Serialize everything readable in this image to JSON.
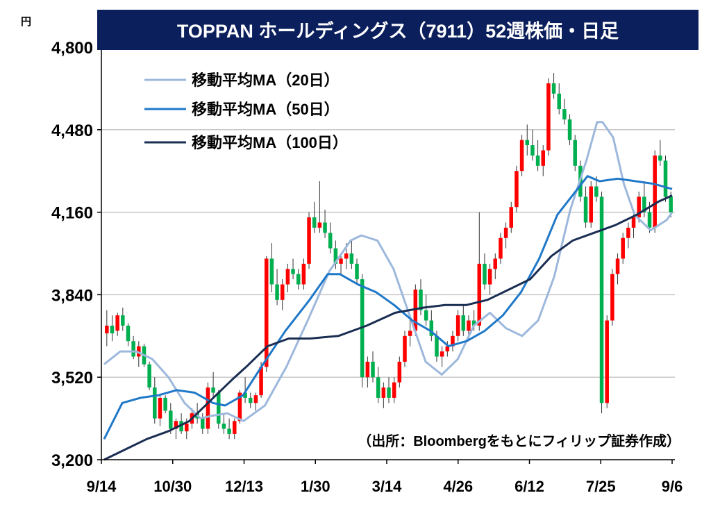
{
  "chart_data": {
    "type": "candlestick",
    "title": "TOPPAN ホールディングス（7911）52週株価・日足",
    "unit_label": "円",
    "source": "（出所：Bloombergをもとにフィリップ証券作成）",
    "ylim": [
      3200,
      4800
    ],
    "yticks": [
      4800,
      4480,
      4160,
      3840,
      3520,
      3200
    ],
    "ytick_labels": [
      "4,800",
      "4,480",
      "4,160",
      "3,840",
      "3,520",
      "3,200"
    ],
    "xtick_labels": [
      "9/14",
      "10/30",
      "12/13",
      "1/30",
      "3/14",
      "4/26",
      "6/12",
      "7/25",
      "9/6"
    ],
    "grid": true,
    "legend_position": "top-left",
    "colors": {
      "up": "#ff0000",
      "down": "#00b050",
      "ma20": "#9db8dc",
      "ma50": "#1f78c8",
      "ma100": "#1a2d52",
      "title_bg": "#0a1f5c",
      "title_text": "#ffffff"
    },
    "legend": [
      "移動平均MA（20日）",
      "移動平均MA（50日）",
      "移動平均MA（100日）"
    ],
    "series": [
      {
        "name": "移動平均MA（20日）",
        "points": [
          [
            0,
            3570
          ],
          [
            3,
            3620
          ],
          [
            6,
            3620
          ],
          [
            9,
            3590
          ],
          [
            12,
            3520
          ],
          [
            15,
            3420
          ],
          [
            18,
            3360
          ],
          [
            20,
            3370
          ],
          [
            23,
            3380
          ],
          [
            26,
            3350
          ],
          [
            30,
            3410
          ],
          [
            34,
            3560
          ],
          [
            38,
            3740
          ],
          [
            42,
            3930
          ],
          [
            46,
            4050
          ],
          [
            48,
            4070
          ],
          [
            51,
            4050
          ],
          [
            54,
            3940
          ],
          [
            57,
            3760
          ],
          [
            60,
            3580
          ],
          [
            63,
            3530
          ],
          [
            66,
            3590
          ],
          [
            69,
            3720
          ],
          [
            72,
            3770
          ],
          [
            75,
            3710
          ],
          [
            78,
            3680
          ],
          [
            81,
            3740
          ],
          [
            84,
            3910
          ],
          [
            87,
            4170
          ],
          [
            90,
            4360
          ],
          [
            92,
            4510
          ],
          [
            93,
            4510
          ],
          [
            95,
            4450
          ],
          [
            97,
            4270
          ],
          [
            99,
            4150
          ],
          [
            102,
            4090
          ],
          [
            105,
            4130
          ],
          [
            106,
            4160
          ]
        ]
      },
      {
        "name": "移動平均MA（50日）",
        "points": [
          [
            0,
            3280
          ],
          [
            3,
            3420
          ],
          [
            6,
            3440
          ],
          [
            9,
            3450
          ],
          [
            12,
            3470
          ],
          [
            15,
            3460
          ],
          [
            18,
            3420
          ],
          [
            20,
            3410
          ],
          [
            23,
            3450
          ],
          [
            26,
            3560
          ],
          [
            30,
            3700
          ],
          [
            34,
            3820
          ],
          [
            37,
            3920
          ],
          [
            39,
            3920
          ],
          [
            42,
            3880
          ],
          [
            45,
            3850
          ],
          [
            48,
            3800
          ],
          [
            51,
            3740
          ],
          [
            54,
            3700
          ],
          [
            57,
            3640
          ],
          [
            60,
            3660
          ],
          [
            63,
            3700
          ],
          [
            66,
            3760
          ],
          [
            69,
            3850
          ],
          [
            72,
            3980
          ],
          [
            75,
            4150
          ],
          [
            78,
            4240
          ],
          [
            80,
            4300
          ],
          [
            82,
            4280
          ],
          [
            85,
            4290
          ],
          [
            88,
            4280
          ],
          [
            91,
            4270
          ],
          [
            94,
            4250
          ]
        ]
      },
      {
        "name": "移動平均MA（100日）",
        "points": [
          [
            0,
            3170
          ],
          [
            3,
            3240
          ],
          [
            6,
            3280
          ],
          [
            9,
            3310
          ],
          [
            12,
            3350
          ],
          [
            15,
            3430
          ],
          [
            18,
            3510
          ],
          [
            20,
            3560
          ],
          [
            23,
            3640
          ],
          [
            26,
            3670
          ],
          [
            29,
            3670
          ],
          [
            33,
            3680
          ],
          [
            37,
            3720
          ],
          [
            41,
            3770
          ],
          [
            45,
            3790
          ],
          [
            48,
            3800
          ],
          [
            51,
            3800
          ],
          [
            54,
            3820
          ],
          [
            57,
            3860
          ],
          [
            60,
            3900
          ],
          [
            63,
            3990
          ],
          [
            66,
            4050
          ],
          [
            69,
            4080
          ],
          [
            72,
            4110
          ],
          [
            75,
            4150
          ],
          [
            78,
            4200
          ],
          [
            80,
            4225
          ]
        ]
      }
    ],
    "series_notes": "MA point lists are [trading_day_index, price]; 20日 spans days 0-106, 50日 spans 0-94 (index scaled), 100日 spans 0-80 (index scaled) over the full x range.",
    "candles": [
      [
        3690,
        3780,
        3640,
        3720
      ],
      [
        3720,
        3760,
        3660,
        3690
      ],
      [
        3700,
        3770,
        3680,
        3760
      ],
      [
        3760,
        3790,
        3700,
        3720
      ],
      [
        3720,
        3730,
        3640,
        3660
      ],
      [
        3660,
        3680,
        3590,
        3600
      ],
      [
        3600,
        3660,
        3560,
        3640
      ],
      [
        3640,
        3650,
        3560,
        3570
      ],
      [
        3570,
        3580,
        3470,
        3480
      ],
      [
        3480,
        3520,
        3340,
        3360
      ],
      [
        3360,
        3450,
        3330,
        3440
      ],
      [
        3440,
        3450,
        3380,
        3390
      ],
      [
        3390,
        3420,
        3300,
        3320
      ],
      [
        3320,
        3360,
        3280,
        3350
      ],
      [
        3350,
        3380,
        3300,
        3310
      ],
      [
        3310,
        3360,
        3280,
        3340
      ],
      [
        3340,
        3400,
        3320,
        3380
      ],
      [
        3380,
        3420,
        3340,
        3360
      ],
      [
        3360,
        3380,
        3300,
        3320
      ],
      [
        3320,
        3500,
        3300,
        3480
      ],
      [
        3480,
        3540,
        3440,
        3460
      ],
      [
        3460,
        3470,
        3320,
        3340
      ],
      [
        3340,
        3380,
        3300,
        3320
      ],
      [
        3320,
        3360,
        3280,
        3300
      ],
      [
        3300,
        3360,
        3280,
        3350
      ],
      [
        3350,
        3470,
        3340,
        3460
      ],
      [
        3460,
        3520,
        3420,
        3440
      ],
      [
        3440,
        3460,
        3400,
        3420
      ],
      [
        3420,
        3460,
        3390,
        3450
      ],
      [
        3450,
        3580,
        3440,
        3560
      ],
      [
        3560,
        3990,
        3540,
        3980
      ],
      [
        3980,
        4040,
        3850,
        3880
      ],
      [
        3880,
        3940,
        3800,
        3820
      ],
      [
        3820,
        3900,
        3780,
        3880
      ],
      [
        3880,
        3960,
        3850,
        3940
      ],
      [
        3940,
        3980,
        3900,
        3920
      ],
      [
        3920,
        3940,
        3860,
        3880
      ],
      [
        3880,
        3980,
        3860,
        3960
      ],
      [
        3960,
        4160,
        3940,
        4140
      ],
      [
        4140,
        4200,
        4080,
        4100
      ],
      [
        4100,
        4280,
        4080,
        4120
      ],
      [
        4120,
        4170,
        4060,
        4080
      ],
      [
        4080,
        4120,
        4000,
        4020
      ],
      [
        4020,
        4050,
        3940,
        3960
      ],
      [
        3960,
        4000,
        3920,
        3980
      ],
      [
        3980,
        4040,
        3940,
        4000
      ],
      [
        4000,
        4050,
        3940,
        3960
      ],
      [
        3960,
        3980,
        3880,
        3900
      ],
      [
        3900,
        3920,
        3480,
        3520
      ],
      [
        3520,
        3600,
        3480,
        3580
      ],
      [
        3580,
        3620,
        3500,
        3520
      ],
      [
        3520,
        3560,
        3420,
        3440
      ],
      [
        3440,
        3500,
        3400,
        3480
      ],
      [
        3480,
        3520,
        3420,
        3440
      ],
      [
        3440,
        3520,
        3420,
        3500
      ],
      [
        3500,
        3600,
        3480,
        3580
      ],
      [
        3580,
        3700,
        3560,
        3680
      ],
      [
        3680,
        3760,
        3640,
        3700
      ],
      [
        3700,
        3880,
        3680,
        3860
      ],
      [
        3860,
        3900,
        3760,
        3780
      ],
      [
        3780,
        3840,
        3720,
        3740
      ],
      [
        3740,
        3780,
        3660,
        3680
      ],
      [
        3680,
        3700,
        3580,
        3600
      ],
      [
        3600,
        3640,
        3560,
        3620
      ],
      [
        3620,
        3660,
        3600,
        3640
      ],
      [
        3640,
        3700,
        3620,
        3680
      ],
      [
        3680,
        3780,
        3660,
        3760
      ],
      [
        3760,
        3800,
        3680,
        3700
      ],
      [
        3700,
        3760,
        3660,
        3740
      ],
      [
        3740,
        3780,
        3700,
        3720
      ],
      [
        3720,
        4160,
        3700,
        3960
      ],
      [
        3960,
        4000,
        3860,
        3880
      ],
      [
        3880,
        3960,
        3840,
        3940
      ],
      [
        3940,
        4000,
        3900,
        3980
      ],
      [
        3980,
        4080,
        3960,
        4060
      ],
      [
        4060,
        4120,
        4020,
        4100
      ],
      [
        4100,
        4200,
        4080,
        4180
      ],
      [
        4180,
        4340,
        4160,
        4320
      ],
      [
        4320,
        4460,
        4300,
        4440
      ],
      [
        4440,
        4500,
        4380,
        4420
      ],
      [
        4420,
        4480,
        4360,
        4380
      ],
      [
        4380,
        4440,
        4320,
        4340
      ],
      [
        4340,
        4420,
        4300,
        4400
      ],
      [
        4400,
        4680,
        4380,
        4660
      ],
      [
        4660,
        4700,
        4600,
        4620
      ],
      [
        4620,
        4660,
        4540,
        4560
      ],
      [
        4560,
        4600,
        4500,
        4520
      ],
      [
        4520,
        4540,
        4420,
        4440
      ],
      [
        4440,
        4460,
        4320,
        4340
      ],
      [
        4340,
        4360,
        4200,
        4220
      ],
      [
        4220,
        4260,
        4100,
        4120
      ],
      [
        4120,
        4280,
        4100,
        4260
      ],
      [
        4260,
        4300,
        4200,
        4220
      ],
      [
        4220,
        4240,
        3380,
        3420
      ],
      [
        3420,
        3760,
        3400,
        3740
      ],
      [
        3740,
        3940,
        3720,
        3920
      ],
      [
        3920,
        4000,
        3880,
        3980
      ],
      [
        3980,
        4080,
        3960,
        4060
      ],
      [
        4060,
        4120,
        4020,
        4100
      ],
      [
        4100,
        4160,
        4060,
        4140
      ],
      [
        4140,
        4240,
        4120,
        4220
      ],
      [
        4220,
        4280,
        4140,
        4160
      ],
      [
        4160,
        4200,
        4080,
        4100
      ],
      [
        4100,
        4400,
        4080,
        4380
      ],
      [
        4380,
        4440,
        4340,
        4360
      ],
      [
        4360,
        4380,
        4200,
        4220
      ],
      [
        4220,
        4240,
        4140,
        4160
      ]
    ]
  }
}
